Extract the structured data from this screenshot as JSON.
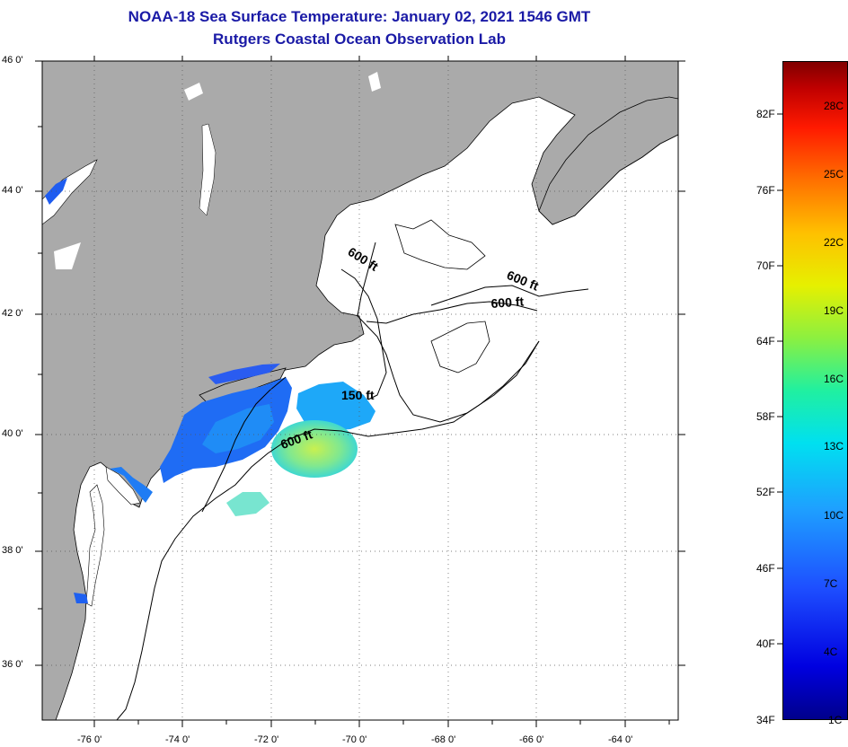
{
  "title": {
    "line1": "NOAA-18 Sea Surface Temperature:  January 02, 2021 1546 GMT",
    "line2": "Rutgers Coastal Ocean Observation Lab"
  },
  "map": {
    "lat_labels": [
      "46 0'",
      "44 0'",
      "42 0'",
      "40 0'",
      "38 0'",
      "36 0'"
    ],
    "lon_labels": [
      "-76 0'",
      "-74 0'",
      "-72 0'",
      "-70 0'",
      "-68 0'",
      "-66 0'",
      "-64 0'"
    ],
    "contour_labels": [
      "600 ft",
      "600 ft",
      "600 ft",
      "150 ft",
      "600 ft"
    ],
    "colors": {
      "land": "#aaaaaa",
      "cloud_or_no_data": "#ffffff",
      "coast": "#000000"
    }
  },
  "colorbar": {
    "fahrenheit_labels": [
      "82F",
      "76F",
      "70F",
      "64F",
      "58F",
      "52F",
      "46F",
      "40F",
      "34F"
    ],
    "celsius_labels": [
      "28C",
      "25C",
      "22C",
      "19C",
      "16C",
      "13C",
      "10C",
      "7C",
      "4C",
      "1C"
    ]
  }
}
